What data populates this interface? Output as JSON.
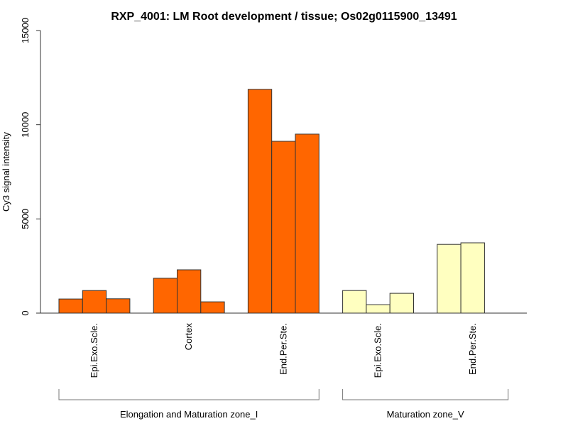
{
  "chart_data": {
    "type": "bar",
    "title": "RXP_4001: LM Root development / tissue; Os02g0115900_13491",
    "xlabel": "",
    "ylabel": "Cy3 signal intensity",
    "ylim": [
      0,
      15000
    ],
    "yticks": [
      0,
      5000,
      10000,
      15000
    ],
    "grid": false,
    "legend": null,
    "categories": [
      "Epi.Exo.Scle.",
      "Cortex",
      "End.Per.Ste.",
      "Epi.Exo.Scle.",
      "End.Per.Ste."
    ],
    "groups": [
      {
        "label": "Elongation and Maturation zone_I",
        "categories": [
          0,
          1,
          2
        ],
        "color": "#FF6600"
      },
      {
        "label": "Maturation zone_V",
        "categories": [
          3,
          4
        ],
        "color": "#FFFFC0"
      }
    ],
    "series": [
      {
        "category": "Epi.Exo.Scle.",
        "group": "Elongation and Maturation zone_I",
        "values": [
          750,
          1200,
          760
        ]
      },
      {
        "category": "Cortex",
        "group": "Elongation and Maturation zone_I",
        "values": [
          1850,
          2300,
          600
        ]
      },
      {
        "category": "End.Per.Ste.",
        "group": "Elongation and Maturation zone_I",
        "values": [
          11880,
          9120,
          9500
        ]
      },
      {
        "category": "Epi.Exo.Scle.",
        "group": "Maturation zone_V",
        "values": [
          1200,
          450,
          1050
        ]
      },
      {
        "category": "End.Per.Ste.",
        "group": "Maturation zone_V",
        "values": [
          3650,
          3730
        ]
      }
    ]
  }
}
